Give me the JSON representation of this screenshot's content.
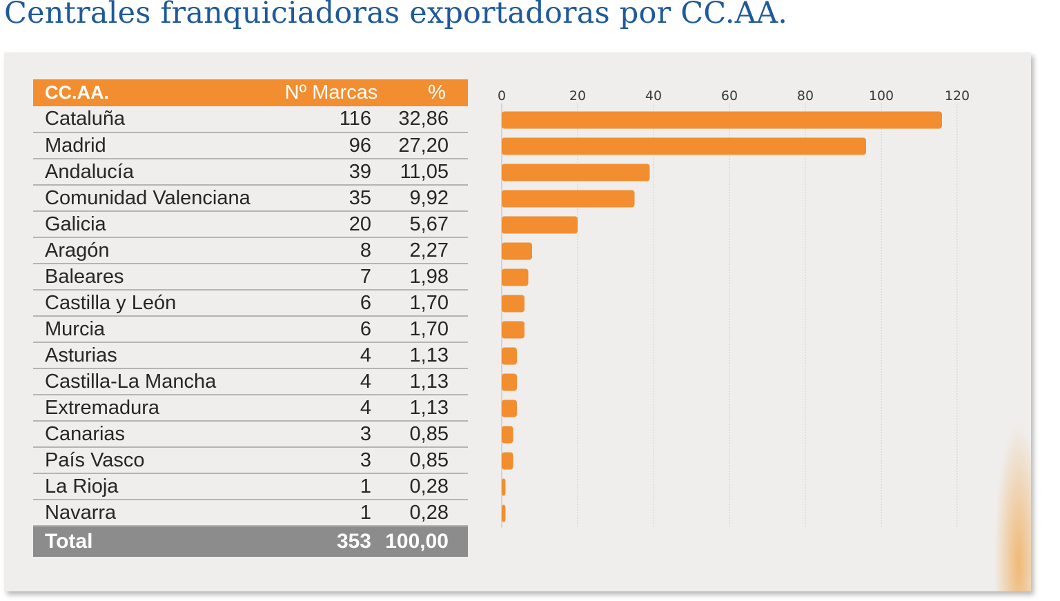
{
  "title": "Centrales franquiciadoras exportadoras por CC.AA.",
  "table": {
    "headers": [
      "CC.AA.",
      "Nº Marcas",
      "%"
    ],
    "rows": [
      {
        "region": "Cataluña",
        "marcas": "116",
        "pct": "32,86"
      },
      {
        "region": "Madrid",
        "marcas": "96",
        "pct": "27,20"
      },
      {
        "region": "Andalucía",
        "marcas": "39",
        "pct": "11,05"
      },
      {
        "region": "Comunidad Valenciana",
        "marcas": "35",
        "pct": "9,92"
      },
      {
        "region": "Galicia",
        "marcas": "20",
        "pct": "5,67"
      },
      {
        "region": "Aragón",
        "marcas": "8",
        "pct": "2,27"
      },
      {
        "region": "Baleares",
        "marcas": "7",
        "pct": "1,98"
      },
      {
        "region": "Castilla y León",
        "marcas": "6",
        "pct": "1,70"
      },
      {
        "region": "Murcia",
        "marcas": "6",
        "pct": "1,70"
      },
      {
        "region": "Asturias",
        "marcas": "4",
        "pct": "1,13"
      },
      {
        "region": "Castilla-La Mancha",
        "marcas": "4",
        "pct": "1,13"
      },
      {
        "region": "Extremadura",
        "marcas": "4",
        "pct": "1,13"
      },
      {
        "region": "Canarias",
        "marcas": "3",
        "pct": "0,85"
      },
      {
        "region": "País Vasco",
        "marcas": "3",
        "pct": "0,85"
      },
      {
        "region": "La Rioja",
        "marcas": "1",
        "pct": "0,28"
      },
      {
        "region": "Navarra",
        "marcas": "1",
        "pct": "0,28"
      }
    ],
    "total": {
      "label": "Total",
      "marcas": "353",
      "pct": "100,00"
    }
  },
  "colors": {
    "bar": "#f28e2f",
    "header": "#f28e2f",
    "total_row": "#8c8c8c",
    "title": "#1f5a9a",
    "panel": "#efeeed"
  },
  "chart_data": {
    "type": "bar",
    "orientation": "horizontal",
    "categories": [
      "Cataluña",
      "Madrid",
      "Andalucía",
      "Comunidad Valenciana",
      "Galicia",
      "Aragón",
      "Baleares",
      "Castilla y León",
      "Murcia",
      "Asturias",
      "Castilla-La Mancha",
      "Extremadura",
      "Canarias",
      "País Vasco",
      "La Rioja",
      "Navarra"
    ],
    "values": [
      116,
      96,
      39,
      35,
      20,
      8,
      7,
      6,
      6,
      4,
      4,
      4,
      3,
      3,
      1,
      1
    ],
    "xlim": [
      0,
      120
    ],
    "xticks": [
      0,
      20,
      40,
      60,
      80,
      100,
      120
    ],
    "axis_position": "top",
    "grid": true
  }
}
